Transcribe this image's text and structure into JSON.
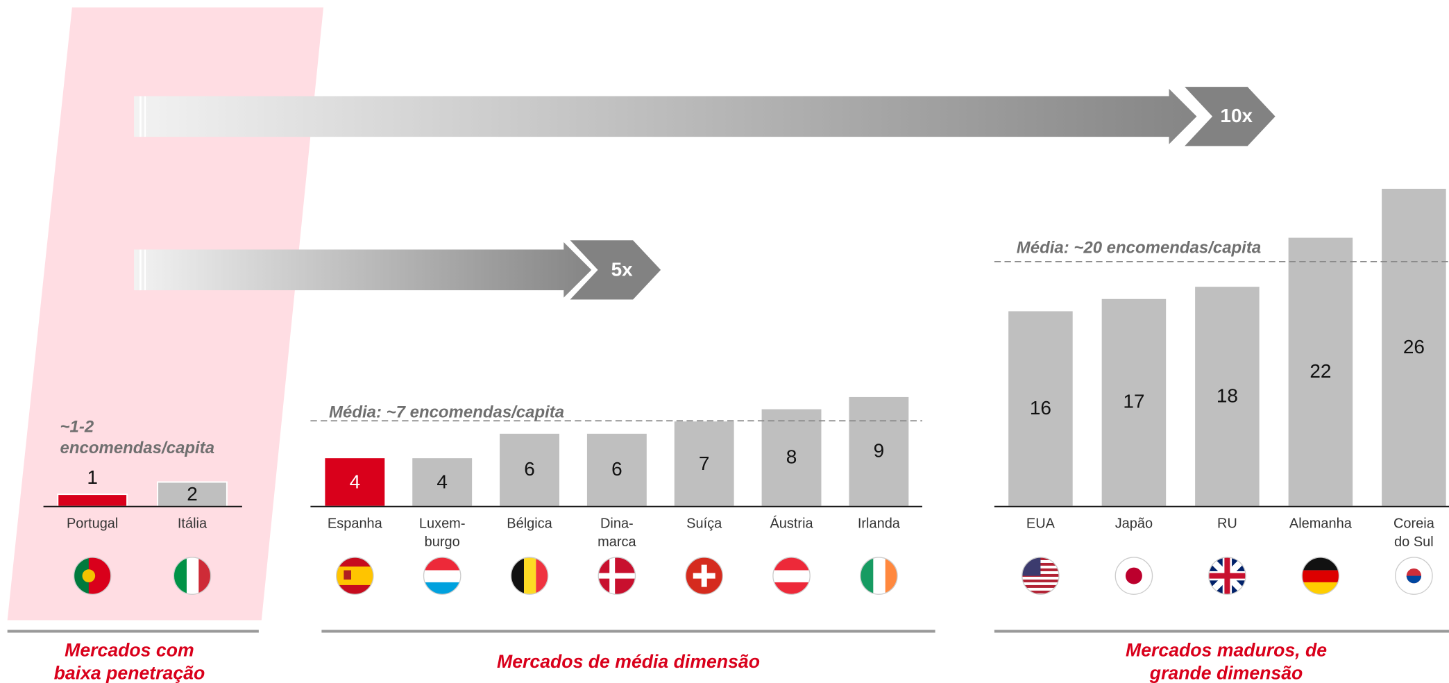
{
  "chart_data": [
    {
      "type": "bar",
      "title": "Mercados com\nbaixa penetração",
      "annotation": "~1-2\nencomendas/capita",
      "categories": [
        "Portugal",
        "Itália"
      ],
      "values": [
        1,
        2
      ],
      "colors": [
        "#d9001b",
        "#bfbfbf"
      ]
    },
    {
      "type": "bar",
      "title": "Mercados de média dimensão",
      "annotation": "Média: ~7 encomendas/capita",
      "average": 7,
      "categories": [
        "Espanha",
        "Luxem-\nburgo",
        "Bélgica",
        "Dina-\nmarca",
        "Suíça",
        "Áustria",
        "Irlanda"
      ],
      "values": [
        4,
        4,
        6,
        6,
        7,
        8,
        9
      ],
      "colors": [
        "#d9001b",
        "#bfbfbf",
        "#bfbfbf",
        "#bfbfbf",
        "#bfbfbf",
        "#bfbfbf",
        "#bfbfbf"
      ]
    },
    {
      "type": "bar",
      "title": "Mercados maduros, de grande dimensão",
      "annotation": "Média: ~20 encomendas/capita",
      "average": 20,
      "categories": [
        "EUA",
        "Japão",
        "RU",
        "Alemanha",
        "Coreia\ndo Sul"
      ],
      "values": [
        16,
        17,
        18,
        22,
        26
      ],
      "colors": [
        "#bfbfbf",
        "#bfbfbf",
        "#bfbfbf",
        "#bfbfbf",
        "#bfbfbf"
      ]
    }
  ],
  "arrows": [
    "10x",
    "5x"
  ]
}
